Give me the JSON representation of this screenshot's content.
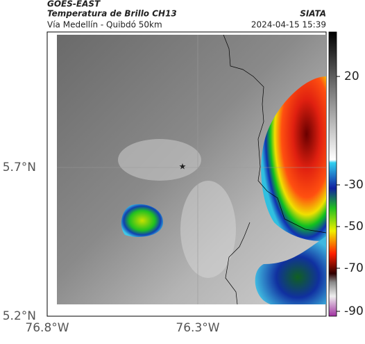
{
  "header": {
    "source": "GOES-EAST",
    "title": "Temperatura de Brillo CH13",
    "subtitle": "Vía Medellín - Quibdó 50km",
    "brand": "SIATA",
    "timestamp": "2024-04-15 15:39"
  },
  "axes": {
    "y_labels": [
      "5.7°N",
      "5.2°N"
    ],
    "x_labels": [
      "76.8°W",
      "76.3°W"
    ]
  },
  "colorbar": {
    "ticks": [
      20,
      -30,
      -50,
      -70,
      -90
    ]
  }
}
